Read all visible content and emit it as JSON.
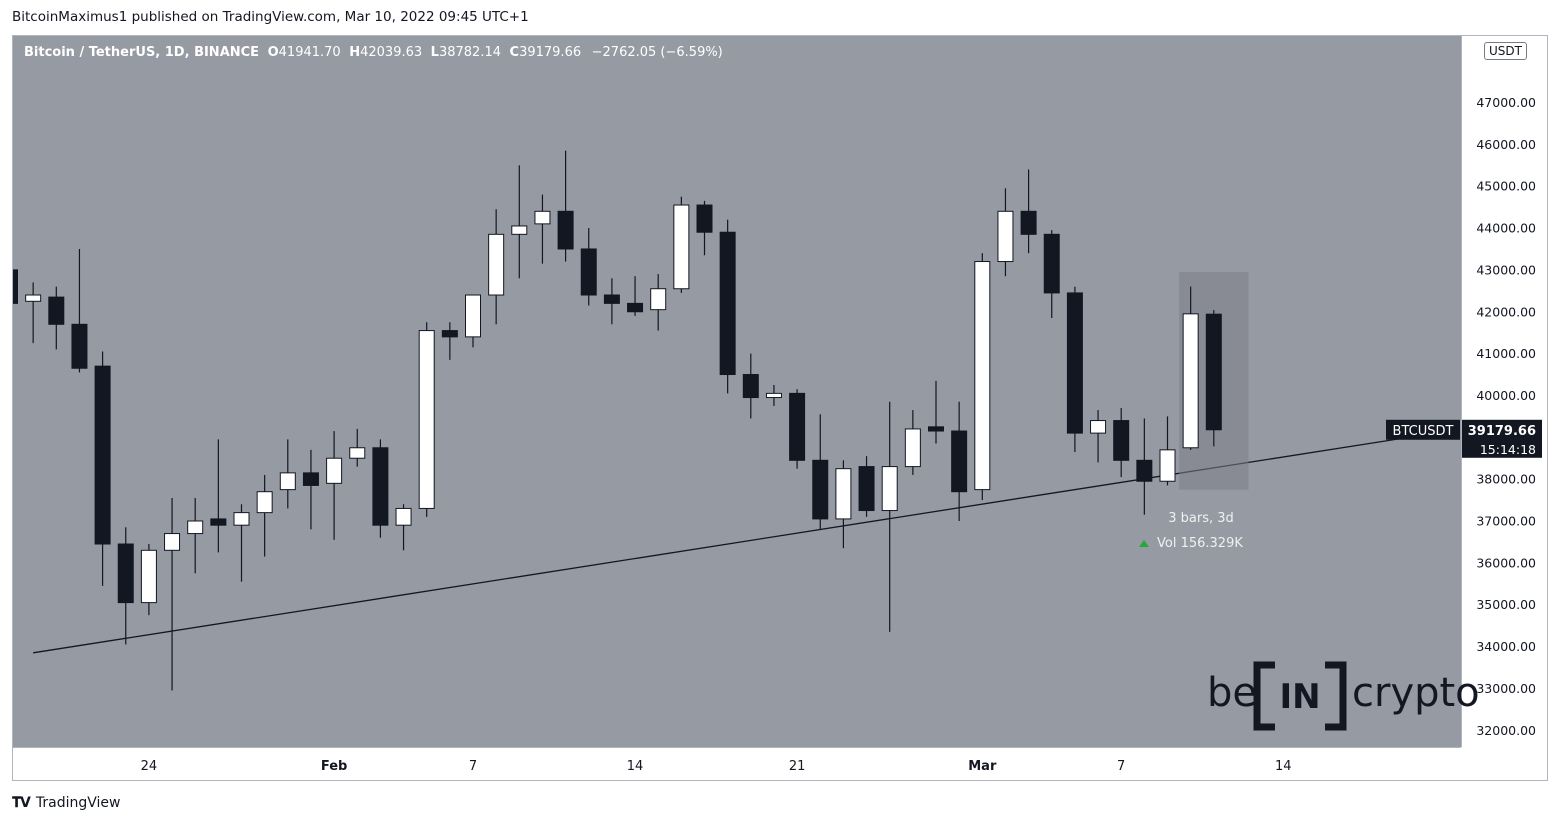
{
  "header": {
    "published": "BitcoinMaximus1 published on TradingView.com, Mar 10, 2022 09:45 UTC+1"
  },
  "legend": {
    "symbol": "Bitcoin / TetherUS, 1D, BINANCE",
    "o_label": "O",
    "o_value": "41941.70",
    "h_label": "H",
    "h_value": "42039.63",
    "l_label": "L",
    "l_value": "38782.14",
    "c_label": "C",
    "c_value": "39179.66",
    "change": "−2762.05 (−6.59%)"
  },
  "currency_badge": "USDT",
  "price_tag": {
    "symbol": "BTCUSDT",
    "price": "39179.66",
    "countdown": "15:14:18"
  },
  "measure": {
    "bars": "3 bars, 3d",
    "vol": "Vol 156.329K"
  },
  "watermark": {
    "left": "be",
    "box": "IN",
    "right": "crypto"
  },
  "footer": {
    "brand": "TradingView"
  },
  "colors": {
    "background": "#969aa3",
    "up": "#ffffff",
    "down": "#131722",
    "wick": "#131722",
    "vol_arrow": "#22ab3b"
  },
  "chart_data": {
    "type": "candlestick",
    "title": "Bitcoin / TetherUS, 1D, BINANCE",
    "ylim": [
      31600,
      48500
    ],
    "y_ticks": [
      "32000.00",
      "33000.00",
      "34000.00",
      "35000.00",
      "36000.00",
      "37000.00",
      "38000.00",
      "39000.00",
      "40000.00",
      "41000.00",
      "42000.00",
      "43000.00",
      "44000.00",
      "45000.00",
      "46000.00",
      "47000.00"
    ],
    "x_ticks": [
      {
        "label": "7",
        "day": -1
      },
      {
        "label": "24",
        "day": 6
      },
      {
        "label": "Feb",
        "day": 14
      },
      {
        "label": "7",
        "day": 20
      },
      {
        "label": "14",
        "day": 27
      },
      {
        "label": "21",
        "day": 34
      },
      {
        "label": "Mar",
        "day": 42
      },
      {
        "label": "7",
        "day": 48
      },
      {
        "label": "14",
        "day": 55
      }
    ],
    "bold_ticks": [
      "Feb",
      "Mar"
    ],
    "candles": [
      {
        "day": 0,
        "o": 43000,
        "h": 43000,
        "l": 42200,
        "c": 42200
      },
      {
        "day": 1,
        "o": 42250,
        "h": 42700,
        "l": 41250,
        "c": 42400
      },
      {
        "day": 2,
        "o": 42350,
        "h": 42600,
        "l": 41100,
        "c": 41700
      },
      {
        "day": 3,
        "o": 41700,
        "h": 43500,
        "l": 40550,
        "c": 40650
      },
      {
        "day": 4,
        "o": 40700,
        "h": 41050,
        "l": 35450,
        "c": 36450
      },
      {
        "day": 5,
        "o": 36450,
        "h": 36850,
        "l": 34050,
        "c": 35050
      },
      {
        "day": 6,
        "o": 35050,
        "h": 36450,
        "l": 34750,
        "c": 36300
      },
      {
        "day": 7,
        "o": 36300,
        "h": 37550,
        "l": 32950,
        "c": 36700
      },
      {
        "day": 8,
        "o": 36700,
        "h": 37550,
        "l": 35750,
        "c": 37000
      },
      {
        "day": 9,
        "o": 37050,
        "h": 38950,
        "l": 36250,
        "c": 36900
      },
      {
        "day": 10,
        "o": 36900,
        "h": 37400,
        "l": 35550,
        "c": 37200
      },
      {
        "day": 11,
        "o": 37200,
        "h": 38100,
        "l": 36150,
        "c": 37700
      },
      {
        "day": 12,
        "o": 37750,
        "h": 38950,
        "l": 37300,
        "c": 38150
      },
      {
        "day": 13,
        "o": 38150,
        "h": 38700,
        "l": 36800,
        "c": 37850
      },
      {
        "day": 14,
        "o": 37900,
        "h": 39150,
        "l": 36550,
        "c": 38500
      },
      {
        "day": 15,
        "o": 38500,
        "h": 39200,
        "l": 38300,
        "c": 38750
      },
      {
        "day": 16,
        "o": 38750,
        "h": 38950,
        "l": 36600,
        "c": 36900
      },
      {
        "day": 17,
        "o": 36900,
        "h": 37400,
        "l": 36300,
        "c": 37300
      },
      {
        "day": 18,
        "o": 37300,
        "h": 41750,
        "l": 37100,
        "c": 41550
      },
      {
        "day": 19,
        "o": 41550,
        "h": 41750,
        "l": 40850,
        "c": 41400
      },
      {
        "day": 20,
        "o": 41400,
        "h": 42400,
        "l": 41150,
        "c": 42400
      },
      {
        "day": 21,
        "o": 42400,
        "h": 44450,
        "l": 41700,
        "c": 43850
      },
      {
        "day": 22,
        "o": 43850,
        "h": 45500,
        "l": 42800,
        "c": 44050
      },
      {
        "day": 23,
        "o": 44100,
        "h": 44800,
        "l": 43150,
        "c": 44400
      },
      {
        "day": 24,
        "o": 44400,
        "h": 45850,
        "l": 43200,
        "c": 43500
      },
      {
        "day": 25,
        "o": 43500,
        "h": 44000,
        "l": 42150,
        "c": 42400
      },
      {
        "day": 26,
        "o": 42400,
        "h": 42800,
        "l": 41700,
        "c": 42200
      },
      {
        "day": 27,
        "o": 42200,
        "h": 42850,
        "l": 41900,
        "c": 42000
      },
      {
        "day": 28,
        "o": 42050,
        "h": 42900,
        "l": 41550,
        "c": 42550
      },
      {
        "day": 29,
        "o": 42550,
        "h": 44750,
        "l": 42450,
        "c": 44550
      },
      {
        "day": 30,
        "o": 44550,
        "h": 44650,
        "l": 43350,
        "c": 43900
      },
      {
        "day": 31,
        "o": 43900,
        "h": 44200,
        "l": 40050,
        "c": 40500
      },
      {
        "day": 32,
        "o": 40500,
        "h": 41000,
        "l": 39450,
        "c": 39950
      },
      {
        "day": 33,
        "o": 39950,
        "h": 40250,
        "l": 39750,
        "c": 40050
      },
      {
        "day": 34,
        "o": 40050,
        "h": 40150,
        "l": 38250,
        "c": 38450
      },
      {
        "day": 35,
        "o": 38450,
        "h": 39550,
        "l": 36800,
        "c": 37050
      },
      {
        "day": 36,
        "o": 37050,
        "h": 38450,
        "l": 36350,
        "c": 38250
      },
      {
        "day": 37,
        "o": 38300,
        "h": 38550,
        "l": 37100,
        "c": 37250
      },
      {
        "day": 38,
        "o": 37250,
        "h": 39850,
        "l": 34350,
        "c": 38300
      },
      {
        "day": 39,
        "o": 38300,
        "h": 39650,
        "l": 38100,
        "c": 39200
      },
      {
        "day": 40,
        "o": 39250,
        "h": 40350,
        "l": 38850,
        "c": 39150
      },
      {
        "day": 41,
        "o": 39150,
        "h": 39850,
        "l": 37000,
        "c": 37700
      },
      {
        "day": 42,
        "o": 37750,
        "h": 43400,
        "l": 37500,
        "c": 43200
      },
      {
        "day": 43,
        "o": 43200,
        "h": 44950,
        "l": 42850,
        "c": 44400
      },
      {
        "day": 44,
        "o": 44400,
        "h": 45400,
        "l": 43400,
        "c": 43850
      },
      {
        "day": 45,
        "o": 43850,
        "h": 43950,
        "l": 41850,
        "c": 42450
      },
      {
        "day": 46,
        "o": 42450,
        "h": 42600,
        "l": 38650,
        "c": 39100
      },
      {
        "day": 47,
        "o": 39100,
        "h": 39650,
        "l": 38400,
        "c": 39400
      },
      {
        "day": 48,
        "o": 39400,
        "h": 39700,
        "l": 38050,
        "c": 38450
      },
      {
        "day": 49,
        "o": 38450,
        "h": 39450,
        "l": 37150,
        "c": 37950
      },
      {
        "day": 50,
        "o": 37950,
        "h": 39500,
        "l": 37850,
        "c": 38700
      },
      {
        "day": 51,
        "o": 38750,
        "h": 42600,
        "l": 38700,
        "c": 41950
      },
      {
        "day": 52,
        "o": 41941.7,
        "h": 42039.63,
        "l": 38782.14,
        "c": 39179.66
      }
    ],
    "trendline": {
      "start": {
        "day": 1.0,
        "price": 33850
      },
      "end": {
        "day": 62.5,
        "price": 39180
      }
    },
    "measure_box": {
      "from_day": 50.5,
      "to_day": 53.5,
      "top": 42950,
      "bottom": 37750
    },
    "last_price": 39179.66
  }
}
